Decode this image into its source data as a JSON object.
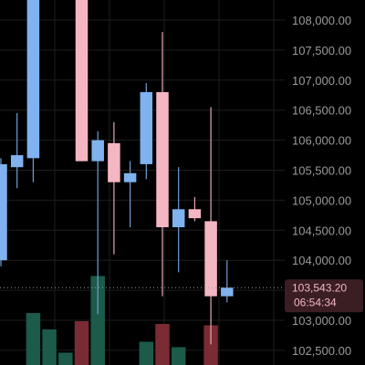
{
  "colors": {
    "background": "#000000",
    "grid": "#1e1e1e",
    "up": "#7fb2ee",
    "down": "#f4b6c2",
    "wick_up": "#6f9fd6",
    "wick_down": "#e6a6b3",
    "volume_up": "#1c5a4a",
    "volume_down": "#7a2b33",
    "price_line": "#9a9a9a",
    "tag_bg": "#3a1e24",
    "tag_text": "#f4b6c2",
    "axis_text": "#9a9a9a"
  },
  "chart_data": {
    "type": "candlestick",
    "grid": true,
    "price_axis_position": "right",
    "ylim": [
      102350,
      108700
    ],
    "y_ticks": [
      102500,
      103000,
      103500,
      104000,
      104500,
      105000,
      105500,
      106000,
      106500,
      107000,
      107500,
      108000
    ],
    "y_tick_labels": [
      "102,500.00",
      "103,000.00",
      "103,500.00",
      "104,000.00",
      "104,500.00",
      "105,000.00",
      "105,500.00",
      "106,000.00",
      "106,500.00",
      "107,000.00",
      "107,500.00",
      "108,000.00"
    ],
    "candles": [
      {
        "open": 104000,
        "high": 105700,
        "low": 103900,
        "close": 105600,
        "volume_level": null
      },
      {
        "open": 105550,
        "high": 106450,
        "low": 105200,
        "close": 105750,
        "volume_level": null
      },
      {
        "open": 105700,
        "high": 108700,
        "low": 105300,
        "close": 108700,
        "volume_level": 0.38
      },
      {
        "open": 108700,
        "high": 108700,
        "low": 108500,
        "close": 108700,
        "volume_level": 0.26
      },
      {
        "open": 108700,
        "high": 108700,
        "low": 108600,
        "close": 108700,
        "volume_level": 0.09
      },
      {
        "open": 108700,
        "high": 108700,
        "low": 105650,
        "close": 105650,
        "volume_level": 0.32
      },
      {
        "open": 105650,
        "high": 106150,
        "low": 103100,
        "close": 106000,
        "volume_level": 0.65
      },
      {
        "open": 105950,
        "high": 106300,
        "low": 104100,
        "close": 105300,
        "volume_level": null
      },
      {
        "open": 105300,
        "high": 105650,
        "low": 104550,
        "close": 105450,
        "volume_level": null
      },
      {
        "open": 105600,
        "high": 106950,
        "low": 105350,
        "close": 106800,
        "volume_level": 0.17
      },
      {
        "open": 106800,
        "high": 107800,
        "low": 103400,
        "close": 104550,
        "volume_level": 0.3
      },
      {
        "open": 104550,
        "high": 105550,
        "low": 103800,
        "close": 104850,
        "volume_level": 0.13
      },
      {
        "open": 104850,
        "high": 105050,
        "low": 104650,
        "close": 104700,
        "volume_level": null
      },
      {
        "open": 104650,
        "high": 106550,
        "low": 102600,
        "close": 103400,
        "volume_level": 0.29
      },
      {
        "open": 103400,
        "high": 104000,
        "low": 103300,
        "close": 103543.2,
        "volume_level": null
      }
    ],
    "last_price": 103543.2,
    "last_price_label": "103,543.20",
    "countdown": "06:54:34"
  }
}
